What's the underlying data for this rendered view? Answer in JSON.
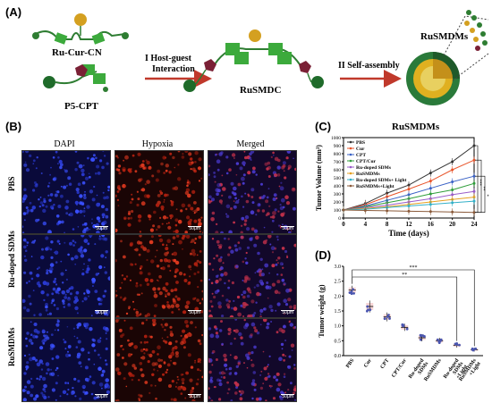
{
  "panels": {
    "A": {
      "label": "(A)",
      "molecule1": "Ru-Cur-CN",
      "molecule2": "P5-CPT",
      "step1": [
        "I Host-guest",
        "Interaction"
      ],
      "product": "RuSMDC",
      "step2": "II Self-assembly",
      "final_label": "RuSMDMs"
    },
    "B": {
      "label": "(B)",
      "columns": [
        "DAPI",
        "Hypoxia",
        "Merged"
      ],
      "rows": [
        "PBS",
        "Ru-doped SDMs",
        "RuSMDMs"
      ],
      "scale_bar": "50μm"
    },
    "C": {
      "label": "(C)"
    },
    "D": {
      "label": "(D)"
    }
  },
  "chart_data": [
    {
      "type": "line",
      "panel": "C",
      "xlabel": "Time (days)",
      "ylabel": "Tumor Volume (mm³)",
      "x": [
        0,
        4,
        8,
        12,
        16,
        20,
        24
      ],
      "xlim": [
        0,
        24
      ],
      "ylim": [
        0,
        1000
      ],
      "yticks": [
        0,
        100,
        200,
        300,
        400,
        500,
        600,
        700,
        800,
        900,
        1000
      ],
      "legend_position": "top-left",
      "series": [
        {
          "name": "PBS",
          "color": "#333333",
          "values": [
            100,
            180,
            310,
            410,
            560,
            700,
            900
          ]
        },
        {
          "name": "Cur",
          "color": "#e8542a",
          "values": [
            100,
            165,
            265,
            360,
            460,
            600,
            720
          ]
        },
        {
          "name": "CPT",
          "color": "#3a62c6",
          "values": [
            100,
            150,
            220,
            290,
            370,
            450,
            520
          ]
        },
        {
          "name": "CPT/Cur",
          "color": "#2f9e3a",
          "values": [
            100,
            140,
            190,
            240,
            300,
            350,
            430
          ]
        },
        {
          "name": "Ru-doped SDMs",
          "color": "#9a5cc8",
          "values": [
            100,
            130,
            160,
            200,
            240,
            290,
            330
          ]
        },
        {
          "name": "RuSMDMs",
          "color": "#e6a020",
          "values": [
            100,
            120,
            140,
            170,
            200,
            230,
            260
          ]
        },
        {
          "name": "Ru-doped SDMs+ Light",
          "color": "#33b0c8",
          "values": [
            100,
            110,
            130,
            150,
            170,
            190,
            210
          ]
        },
        {
          "name": "RuSMDMs+Light",
          "color": "#8a5a3a",
          "values": [
            100,
            95,
            90,
            85,
            80,
            75,
            70
          ]
        }
      ],
      "significance": [
        "***",
        "**",
        "*"
      ]
    },
    {
      "type": "bar",
      "panel": "D",
      "ylabel": "Tumor weight (g)",
      "ylim": [
        0,
        3.0
      ],
      "yticks": [
        "0.0",
        "0.5",
        "1.0",
        "1.5",
        "2.0",
        "2.5",
        "3.0"
      ],
      "categories": [
        "PBS",
        "Cur",
        "CPT",
        "CPT/Cur",
        "Ru-doped SDMs",
        "RuSMDMs",
        "Ru-doped SDMs +Light",
        "RuSMDMs +Light"
      ],
      "values": [
        2.2,
        1.65,
        1.3,
        0.95,
        0.6,
        0.5,
        0.35,
        0.2
      ],
      "errors": [
        0.15,
        0.2,
        0.15,
        0.12,
        0.12,
        0.1,
        0.08,
        0.06
      ],
      "point_color": "#4a56b0",
      "box_color": "#e88a8a",
      "significance": [
        "***",
        "**"
      ]
    }
  ]
}
